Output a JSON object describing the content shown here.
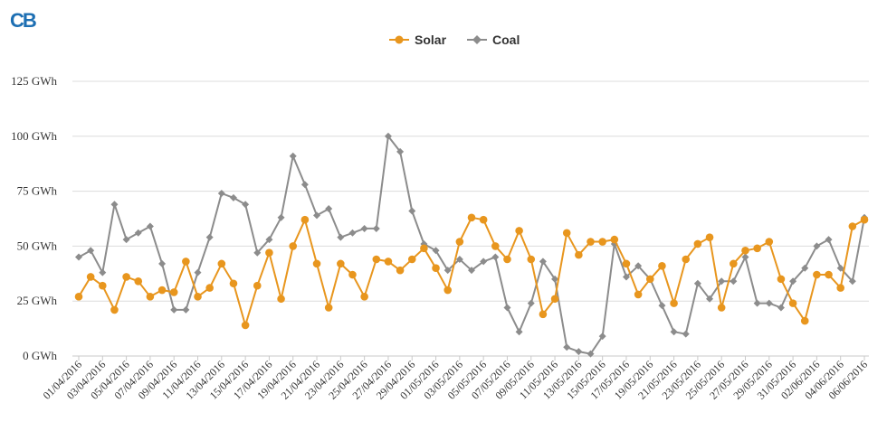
{
  "logo": {
    "text": "CB",
    "color": "#1d6fb3"
  },
  "chart_data": {
    "type": "line",
    "title": "",
    "xlabel": "",
    "ylabel": "",
    "ylim": [
      0,
      125
    ],
    "yticks": [
      0,
      25,
      50,
      75,
      100,
      125
    ],
    "ytick_labels": [
      "0 GWh",
      "25 GWh",
      "50 GWh",
      "75 GWh",
      "100 GWh",
      "125 GWh"
    ],
    "grid": true,
    "legend_position": "top-center",
    "x": [
      "01/04/2016",
      "02/04/2016",
      "03/04/2016",
      "04/04/2016",
      "05/04/2016",
      "06/04/2016",
      "07/04/2016",
      "08/04/2016",
      "09/04/2016",
      "10/04/2016",
      "11/04/2016",
      "12/04/2016",
      "13/04/2016",
      "14/04/2016",
      "15/04/2016",
      "16/04/2016",
      "17/04/2016",
      "18/04/2016",
      "19/04/2016",
      "20/04/2016",
      "21/04/2016",
      "22/04/2016",
      "23/04/2016",
      "24/04/2016",
      "25/04/2016",
      "26/04/2016",
      "27/04/2016",
      "28/04/2016",
      "29/04/2016",
      "30/04/2016",
      "01/05/2016",
      "02/05/2016",
      "03/05/2016",
      "04/05/2016",
      "05/05/2016",
      "06/05/2016",
      "07/05/2016",
      "08/05/2016",
      "09/05/2016",
      "10/05/2016",
      "11/05/2016",
      "12/05/2016",
      "13/05/2016",
      "14/05/2016",
      "15/05/2016",
      "16/05/2016",
      "17/05/2016",
      "18/05/2016",
      "19/05/2016",
      "20/05/2016",
      "21/05/2016",
      "22/05/2016",
      "23/05/2016",
      "24/05/2016",
      "25/05/2016",
      "26/05/2016",
      "27/05/2016",
      "28/05/2016",
      "29/05/2016",
      "30/05/2016",
      "31/05/2016",
      "01/06/2016",
      "02/06/2016",
      "03/06/2016",
      "04/06/2016",
      "05/06/2016",
      "06/06/2016"
    ],
    "x_tick_labels": [
      "01/04/2016",
      "03/04/2016",
      "05/04/2016",
      "07/04/2016",
      "09/04/2016",
      "11/04/2016",
      "13/04/2016",
      "15/04/2016",
      "17/04/2016",
      "19/04/2016",
      "21/04/2016",
      "23/04/2016",
      "25/04/2016",
      "27/04/2016",
      "29/04/2016",
      "01/05/2016",
      "03/05/2016",
      "05/05/2016",
      "07/05/2016",
      "09/05/2016",
      "11/05/2016",
      "13/05/2016",
      "15/05/2016",
      "17/05/2016",
      "19/05/2016",
      "21/05/2016",
      "23/05/2016",
      "25/05/2016",
      "27/05/2016",
      "29/05/2016",
      "31/05/2016",
      "02/06/2016",
      "04/06/2016",
      "06/06/2016"
    ],
    "series": [
      {
        "name": "Solar",
        "color": "#e8961e",
        "marker": "circle",
        "values": [
          27,
          36,
          32,
          21,
          36,
          34,
          27,
          30,
          29,
          43,
          27,
          31,
          42,
          33,
          14,
          32,
          47,
          26,
          50,
          62,
          42,
          22,
          42,
          37,
          27,
          44,
          43,
          39,
          44,
          49,
          40,
          30,
          52,
          63,
          62,
          50,
          44,
          57,
          44,
          19,
          26,
          56,
          46,
          52,
          52,
          53,
          42,
          28,
          35,
          41,
          24,
          44,
          51,
          54,
          22,
          42,
          48,
          49,
          52,
          35,
          24,
          16,
          37,
          37,
          31,
          59,
          62
        ]
      },
      {
        "name": "Coal",
        "color": "#8c8c8c",
        "marker": "diamond",
        "values": [
          45,
          48,
          38,
          69,
          53,
          56,
          59,
          42,
          21,
          21,
          38,
          54,
          74,
          72,
          69,
          47,
          53,
          63,
          91,
          78,
          64,
          67,
          54,
          56,
          58,
          58,
          100,
          93,
          66,
          51,
          48,
          39,
          44,
          39,
          43,
          45,
          22,
          11,
          24,
          43,
          35,
          4,
          2,
          1,
          9,
          51,
          36,
          41,
          35,
          23,
          11,
          10,
          33,
          26,
          34,
          34,
          45,
          24,
          24,
          22,
          34,
          40,
          50,
          53,
          40,
          34,
          63
        ]
      }
    ]
  }
}
